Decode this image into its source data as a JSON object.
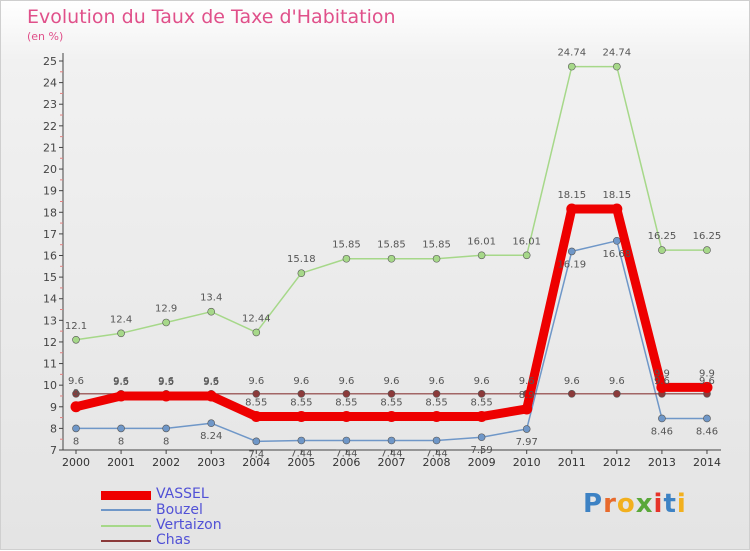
{
  "branding": {
    "logo_text": "Proxiti"
  },
  "chart_data": {
    "type": "line",
    "title": "Evolution du Taux de Taxe d'Habitation",
    "subtitle": "(en %)",
    "xlabel": "",
    "ylabel": "",
    "x": [
      "2000",
      "2001",
      "2002",
      "2003",
      "2004",
      "2005",
      "2006",
      "2007",
      "2008",
      "2009",
      "2010",
      "2011",
      "2012",
      "2013",
      "2014"
    ],
    "ylim": [
      7,
      25
    ],
    "yticks": [
      7,
      8,
      9,
      10,
      11,
      12,
      13,
      14,
      15,
      16,
      17,
      18,
      19,
      20,
      21,
      22,
      23,
      24,
      25
    ],
    "grid": false,
    "legend_position": "bottom-left",
    "series": [
      {
        "name": "VASSEL",
        "color": "#ee0000",
        "values": [
          9.0,
          9.5,
          9.5,
          9.5,
          8.55,
          8.55,
          8.55,
          8.55,
          8.55,
          8.55,
          8.9,
          18.15,
          18.15,
          9.9,
          9.9
        ],
        "labels": [
          "9",
          "9.5",
          "9.5",
          "9.5",
          "8.55",
          "8.55",
          "8.55",
          "8.55",
          "8.55",
          "8.55",
          "8.9",
          "18.15",
          "18.15",
          "9.9",
          "9.9"
        ]
      },
      {
        "name": "Bouzel",
        "color": "#6f97c8",
        "values": [
          8,
          8,
          8,
          8.24,
          7.4,
          7.44,
          7.44,
          7.44,
          7.44,
          7.59,
          7.97,
          16.19,
          16.68,
          8.46,
          8.46
        ],
        "labels": [
          "8",
          "8",
          "8",
          "8.24",
          "7.4",
          "7.44",
          "7.44",
          "7.44",
          "7.44",
          "7.59",
          "7.97",
          "16.19",
          "16.68",
          "8.46",
          "8.46"
        ]
      },
      {
        "name": "Vertaizon",
        "color": "#a6d889",
        "values": [
          12.1,
          12.4,
          12.9,
          13.4,
          12.44,
          15.18,
          15.85,
          15.85,
          15.85,
          16.01,
          16.01,
          24.74,
          24.74,
          16.25,
          16.25
        ],
        "labels": [
          "12.1",
          "12.4",
          "12.9",
          "13.4",
          "12.44",
          "15.18",
          "15.85",
          "15.85",
          "15.85",
          "16.01",
          "16.01",
          "24.74",
          "24.74",
          "16.25",
          "16.25"
        ]
      },
      {
        "name": "Chas",
        "color": "#8b3a3a",
        "values": [
          9.6,
          9.6,
          9.6,
          9.6,
          9.6,
          9.6,
          9.6,
          9.6,
          9.6,
          9.6,
          9.6,
          9.6,
          9.6,
          9.6,
          9.6
        ],
        "labels": [
          "9.6",
          "9.6",
          "9.6",
          "9.6",
          "9.6",
          "9.6",
          "9.6",
          "9.6",
          "9.6",
          "9.6",
          "9.6",
          "9.6",
          "9.6",
          "9.6",
          "9.6"
        ]
      }
    ]
  }
}
